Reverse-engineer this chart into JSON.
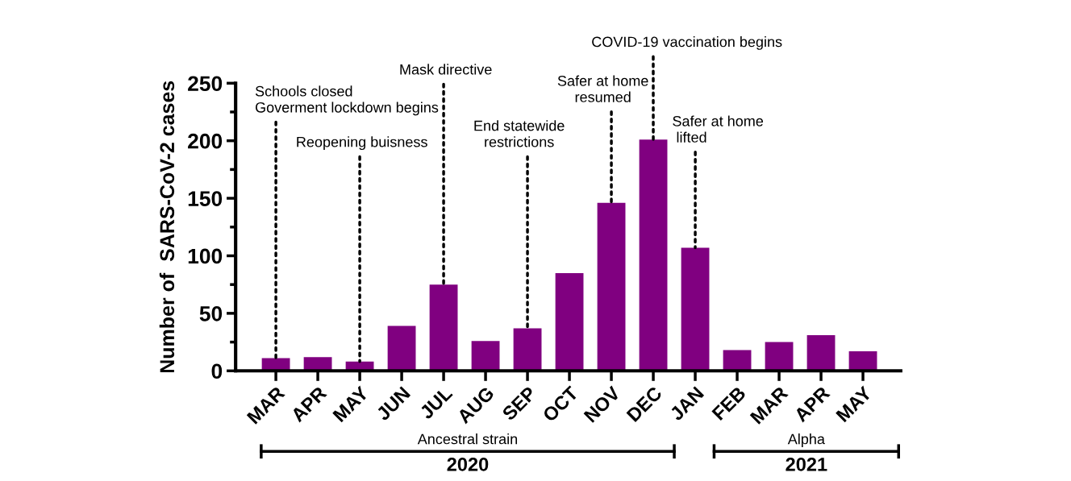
{
  "chart_data": {
    "type": "bar",
    "ylabel": "Number of  SARS-CoV-2 cases",
    "categories": [
      "MAR",
      "APR",
      "MAY",
      "JUN",
      "JUL",
      "AUG",
      "SEP",
      "OCT",
      "NOV",
      "DEC",
      "JAN",
      "FEB",
      "MAR",
      "APR",
      "MAY"
    ],
    "values": [
      11,
      12,
      8,
      39,
      75,
      26,
      37,
      85,
      146,
      201,
      107,
      18,
      25,
      31,
      17
    ],
    "color": "#800080",
    "ylim": [
      0,
      250
    ],
    "yticks": [
      0,
      50,
      100,
      150,
      200,
      250
    ],
    "grid": false,
    "annotations": [
      {
        "text": "Schools closed\nGoverment lockdown begins",
        "x": "MAR",
        "y": 11
      },
      {
        "text": "Reopening buisness",
        "x": "MAY",
        "y": 8
      },
      {
        "text": "Mask directive",
        "x": "JUL",
        "y": 75
      },
      {
        "text": "End statewide\nrestrictions",
        "x": "SEP",
        "y": 37
      },
      {
        "text": "Safer at home\nresumed",
        "x": "NOV",
        "y": 146
      },
      {
        "text": "COVID-19 vaccination begins",
        "x": "DEC",
        "y": 201
      },
      {
        "text": "Safer at home\n lifted",
        "x": "JAN",
        "y": 107
      },
      "Ancestral strain",
      "2020",
      "Alpha",
      "2021"
    ]
  }
}
